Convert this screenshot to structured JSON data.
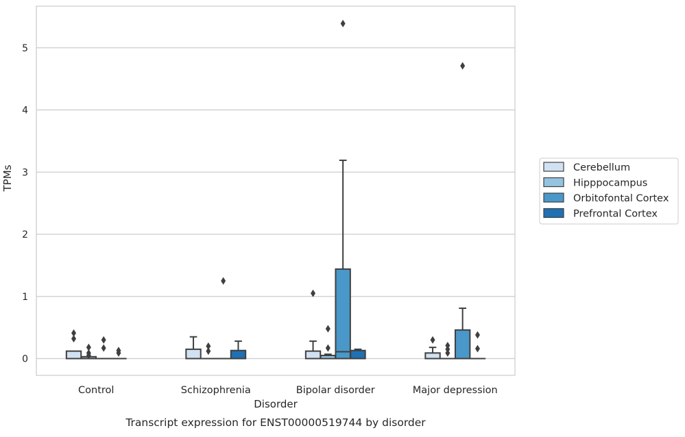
{
  "chart_data": {
    "type": "box",
    "title": "Transcript expression for ENST00000519744 by disorder",
    "xlabel": "Disorder",
    "ylabel": "TPMs",
    "ylim": [
      -0.27,
      5.67
    ],
    "yticks": [
      0,
      1,
      2,
      3,
      4,
      5
    ],
    "grid": "horizontal",
    "legend_position": "right",
    "categories": [
      "Control",
      "Schizophrenia",
      "Bipolar disorder",
      "Major depression"
    ],
    "series": [
      {
        "name": "Cerebellum",
        "color": "#d0e1f2",
        "boxes": [
          {
            "q1": 0.0,
            "median": 0.0,
            "q3": 0.12,
            "whisker_low": 0.0,
            "whisker_high": 0.12,
            "outliers": [
              0.32,
              0.41
            ]
          },
          {
            "q1": 0.0,
            "median": 0.0,
            "q3": 0.15,
            "whisker_low": 0.0,
            "whisker_high": 0.35,
            "outliers": []
          },
          {
            "q1": 0.0,
            "median": 0.0,
            "q3": 0.12,
            "whisker_low": 0.0,
            "whisker_high": 0.28,
            "outliers": [
              1.05
            ]
          },
          {
            "q1": 0.0,
            "median": 0.0,
            "q3": 0.09,
            "whisker_low": 0.0,
            "whisker_high": 0.18,
            "outliers": [
              0.3
            ]
          }
        ]
      },
      {
        "name": "Hipppocampus",
        "color": "#94c4df",
        "boxes": [
          {
            "q1": 0.0,
            "median": 0.0,
            "q3": 0.03,
            "whisker_low": 0.0,
            "whisker_high": 0.03,
            "outliers": [
              0.05,
              0.09,
              0.18
            ]
          },
          {
            "q1": 0.0,
            "median": 0.0,
            "q3": 0.0,
            "whisker_low": 0.0,
            "whisker_high": 0.0,
            "outliers": [
              0.12,
              0.2
            ]
          },
          {
            "q1": 0.0,
            "median": 0.0,
            "q3": 0.05,
            "whisker_low": 0.0,
            "whisker_high": 0.07,
            "outliers": [
              0.17,
              0.48
            ]
          },
          {
            "q1": 0.0,
            "median": 0.0,
            "q3": 0.0,
            "whisker_low": 0.0,
            "whisker_high": 0.0,
            "outliers": [
              0.09,
              0.15,
              0.21
            ]
          }
        ]
      },
      {
        "name": "Orbitofontal Cortex",
        "color": "#4a98c9",
        "boxes": [
          {
            "q1": 0.0,
            "median": 0.0,
            "q3": 0.0,
            "whisker_low": 0.0,
            "whisker_high": 0.0,
            "outliers": [
              0.17,
              0.3
            ]
          },
          {
            "q1": 0.0,
            "median": 0.0,
            "q3": 0.0,
            "whisker_low": 0.0,
            "whisker_high": 0.0,
            "outliers": [
              1.25
            ]
          },
          {
            "q1": 0.0,
            "median": 0.11,
            "q3": 1.44,
            "whisker_low": 0.0,
            "whisker_high": 3.19,
            "outliers": [
              5.39
            ]
          },
          {
            "q1": 0.0,
            "median": 0.0,
            "q3": 0.46,
            "whisker_low": 0.0,
            "whisker_high": 0.81,
            "outliers": [
              4.71
            ]
          }
        ]
      },
      {
        "name": "Prefrontal Cortex",
        "color": "#2070b4",
        "boxes": [
          {
            "q1": 0.0,
            "median": 0.0,
            "q3": 0.0,
            "whisker_low": 0.0,
            "whisker_high": 0.0,
            "outliers": [
              0.09,
              0.13
            ]
          },
          {
            "q1": 0.0,
            "median": 0.0,
            "q3": 0.13,
            "whisker_low": 0.0,
            "whisker_high": 0.28,
            "outliers": []
          },
          {
            "q1": 0.0,
            "median": 0.0,
            "q3": 0.13,
            "whisker_low": 0.0,
            "whisker_high": 0.15,
            "outliers": []
          },
          {
            "q1": 0.0,
            "median": 0.0,
            "q3": 0.0,
            "whisker_low": 0.0,
            "whisker_high": 0.0,
            "outliers": [
              0.16,
              0.38
            ]
          }
        ]
      }
    ]
  }
}
